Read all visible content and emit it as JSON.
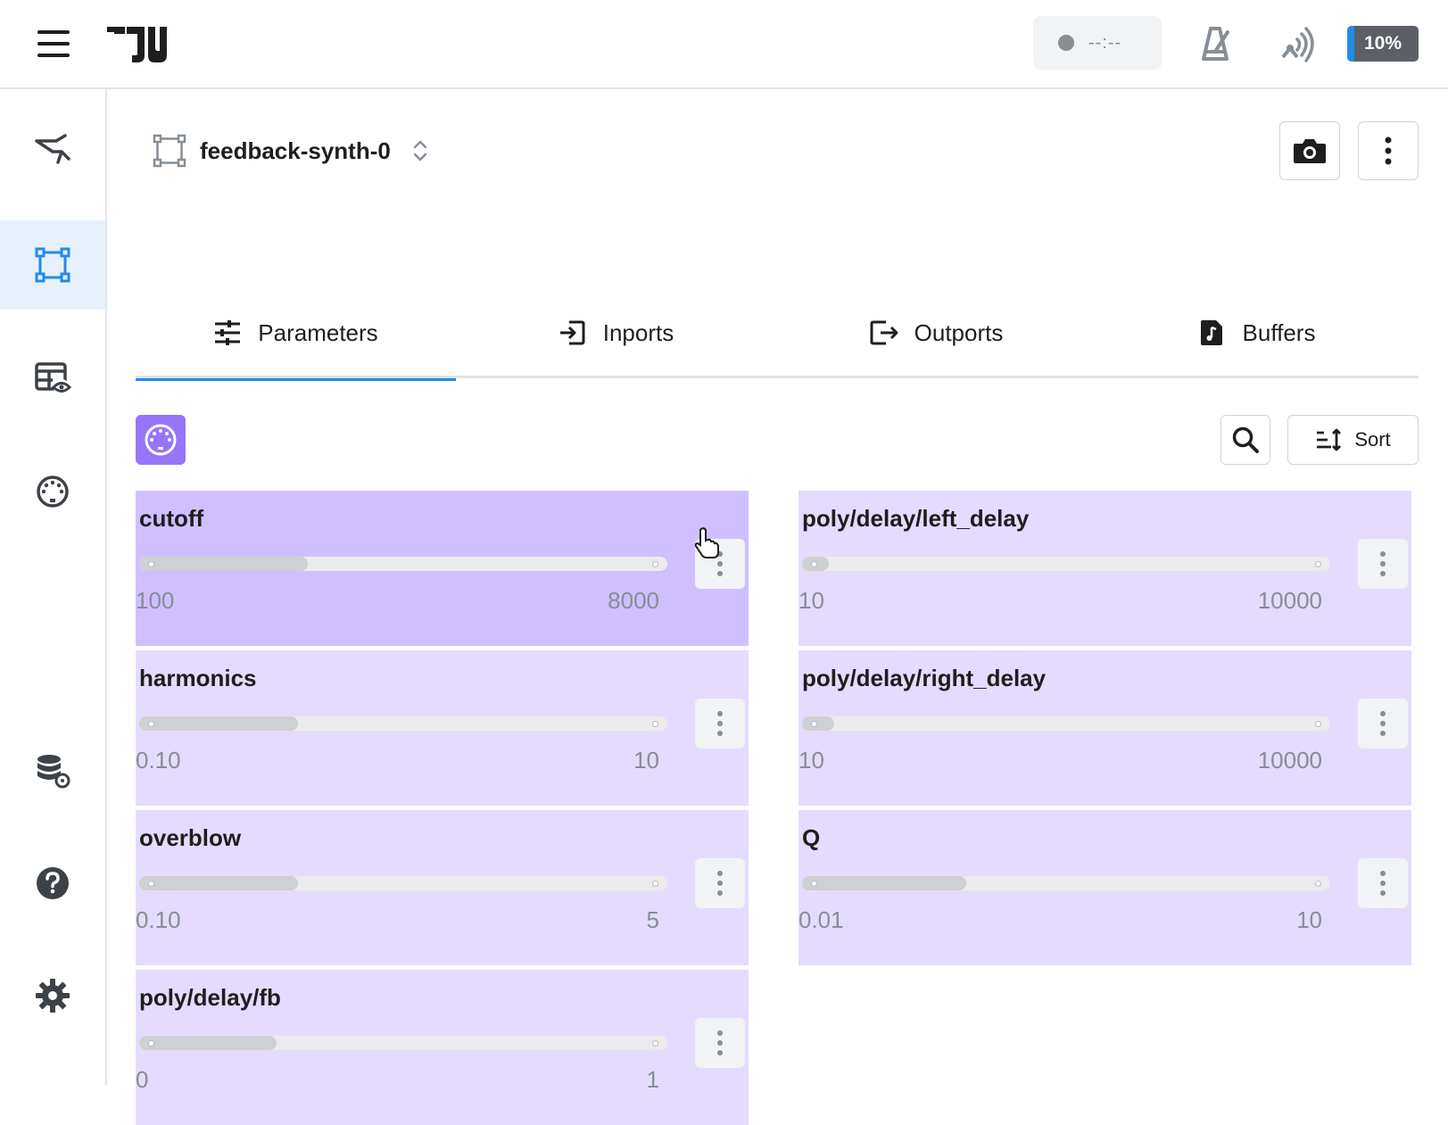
{
  "header": {
    "record_time": "--:--",
    "cpu_label": "10%",
    "cpu_fraction": 0.1
  },
  "device": {
    "name": "feedback-synth-0"
  },
  "tabs": [
    {
      "label": "Parameters",
      "icon": "sliders-icon",
      "active": true
    },
    {
      "label": "Inports",
      "icon": "inport-icon",
      "active": false
    },
    {
      "label": "Outports",
      "icon": "outport-icon",
      "active": false
    },
    {
      "label": "Buffers",
      "icon": "audio-file-icon",
      "active": false
    }
  ],
  "toolbar": {
    "sort_label": "Sort"
  },
  "colors": {
    "accent": "#228be6",
    "card_bg": "#e5dbff",
    "card_hover": "#d0bfff",
    "midi": "#9775fa"
  },
  "parameters": [
    {
      "name": "cutoff",
      "min": "100",
      "max": "8000",
      "fraction": 0.32
    },
    {
      "name": "poly/delay/left_delay",
      "min": "10",
      "max": "10000",
      "fraction": 0.05
    },
    {
      "name": "harmonics",
      "min": "0.10",
      "max": "10",
      "fraction": 0.3
    },
    {
      "name": "poly/delay/right_delay",
      "min": "10",
      "max": "10000",
      "fraction": 0.06
    },
    {
      "name": "overblow",
      "min": "0.10",
      "max": "5",
      "fraction": 0.3
    },
    {
      "name": "Q",
      "min": "0.01",
      "max": "10",
      "fraction": 0.31
    },
    {
      "name": "poly/delay/fb",
      "min": "0",
      "max": "1",
      "fraction": 0.26
    }
  ]
}
